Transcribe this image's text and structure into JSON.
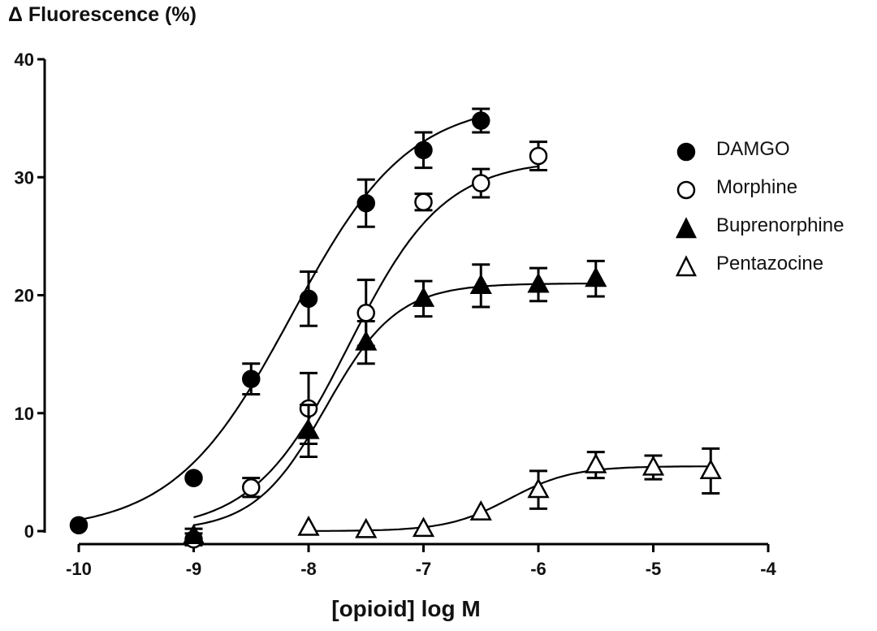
{
  "chart_data": {
    "type": "scatter",
    "title": "",
    "ylabel": "Δ Fluorescence (%)",
    "xlabel": "[opioid] log M",
    "xlim": [
      -10,
      -4
    ],
    "ylim": [
      0,
      40
    ],
    "xticks": [
      "-10",
      "-9",
      "-8",
      "-7",
      "-6",
      "-5",
      "-4"
    ],
    "yticks": [
      "0",
      "10",
      "20",
      "30",
      "40"
    ],
    "grid": false,
    "legend_position": "right",
    "series": [
      {
        "name": "DAMGO",
        "marker": "filled-circle",
        "x": [
          -10,
          -9,
          -8.5,
          -8,
          -7.5,
          -7,
          -6.5
        ],
        "y": [
          0.5,
          4.5,
          12.9,
          19.7,
          27.8,
          32.3,
          34.8
        ],
        "err": [
          0,
          0,
          1.3,
          2.3,
          2.0,
          1.5,
          1.0
        ],
        "fit": {
          "bottom": 0,
          "top": 36.5,
          "logec50": -8.15,
          "hill": 0.85,
          "x_range": [
            -10,
            -6.5
          ]
        }
      },
      {
        "name": "Morphine",
        "marker": "open-circle",
        "x": [
          -9,
          -8.5,
          -8,
          -7.5,
          -7,
          -6.5,
          -6
        ],
        "y": [
          -0.7,
          3.7,
          10.4,
          18.5,
          27.9,
          29.5,
          31.8
        ],
        "err": [
          0.5,
          0.8,
          3.0,
          2.8,
          0.7,
          1.2,
          1.2
        ],
        "fit": {
          "bottom": 0,
          "top": 31.5,
          "logec50": -7.65,
          "hill": 1.05,
          "x_range": [
            -9,
            -6
          ]
        }
      },
      {
        "name": "Buprenorphine",
        "marker": "filled-triangle",
        "x": [
          -9,
          -8,
          -7.5,
          -7,
          -6.5,
          -6,
          -5.5
        ],
        "y": [
          -0.4,
          8.5,
          16.0,
          19.7,
          20.8,
          20.9,
          21.4
        ],
        "err": [
          0.6,
          2.2,
          1.8,
          1.5,
          1.8,
          1.4,
          1.5
        ],
        "fit": {
          "bottom": 0,
          "top": 21.0,
          "logec50": -7.85,
          "hill": 1.4,
          "x_range": [
            -9,
            -5.5
          ]
        }
      },
      {
        "name": "Pentazocine",
        "marker": "open-triangle",
        "x": [
          -8,
          -7.5,
          -7,
          -6.5,
          -6,
          -5.5,
          -5,
          -4.5
        ],
        "y": [
          0.3,
          0.1,
          0.2,
          1.6,
          3.5,
          5.6,
          5.4,
          5.1
        ],
        "err": [
          0,
          0,
          0,
          0,
          1.6,
          1.1,
          1.0,
          1.9
        ],
        "fit": {
          "bottom": 0,
          "top": 5.5,
          "logec50": -6.25,
          "hill": 1.6,
          "x_range": [
            -8,
            -4.5
          ]
        }
      }
    ]
  }
}
